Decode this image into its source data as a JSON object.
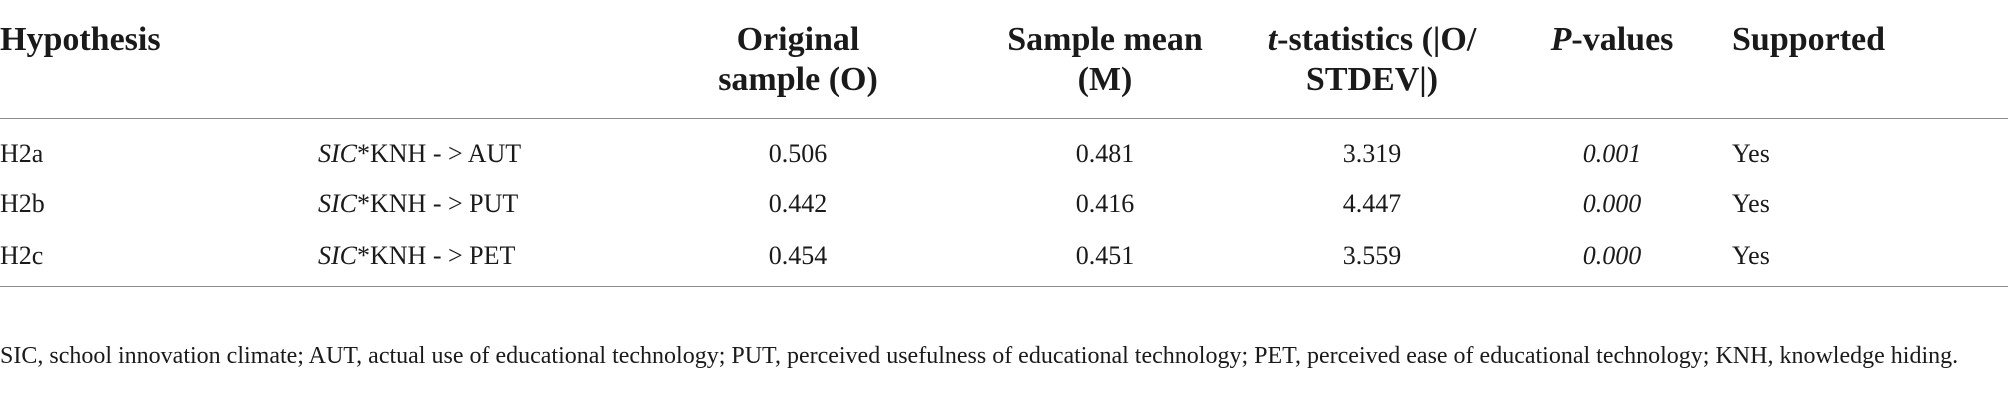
{
  "table": {
    "headers": {
      "hypothesis": "Hypothesis",
      "path": "",
      "original_sample": [
        "Original",
        "sample (O)"
      ],
      "sample_mean": [
        "Sample mean",
        "(M)"
      ],
      "t_stat_italic": "t",
      "t_stat_rest": [
        "-statistics (|O/",
        "STDEV|)"
      ],
      "p_italic": "P",
      "p_rest": "-values",
      "supported": "Supported"
    },
    "rows": [
      {
        "hypothesis": "H2a",
        "path_italic": "SIC",
        "path_rest": "*KNH - > AUT",
        "original_sample": "0.506",
        "sample_mean": "0.481",
        "t_statistics": "3.319",
        "p_value": "0.001",
        "supported": "Yes"
      },
      {
        "hypothesis": "H2b",
        "path_italic": "SIC",
        "path_rest": "*KNH - > PUT",
        "original_sample": "0.442",
        "sample_mean": "0.416",
        "t_statistics": "4.447",
        "p_value": "0.000",
        "supported": "Yes"
      },
      {
        "hypothesis": "H2c",
        "path_italic": "SIC",
        "path_rest": "*KNH - > PET",
        "original_sample": "0.454",
        "sample_mean": "0.451",
        "t_statistics": "3.559",
        "p_value": "0.000",
        "supported": "Yes"
      }
    ]
  },
  "footnote": "SIC, school innovation climate; AUT, actual use of educational technology; PUT, perceived usefulness of educational technology; PET, perceived ease of educational technology; KNH, knowledge hiding."
}
